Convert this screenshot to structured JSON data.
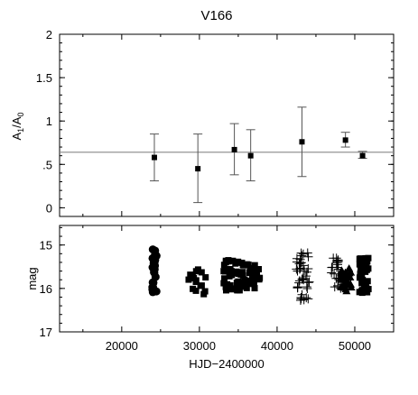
{
  "chart_data": [
    {
      "type": "scatter",
      "title": "V166",
      "xlabel": "",
      "ylabel": "A1/A0",
      "ylabel_main": "A",
      "ylabel_sub1": "1",
      "ylabel_div": "/A",
      "ylabel_sub0": "0",
      "xlim": [
        12000,
        55000
      ],
      "ylim": [
        -0.1,
        2.0
      ],
      "y_ticks": [
        0,
        0.5,
        1,
        1.5,
        2
      ],
      "y_tick_labels": [
        "0",
        ".5",
        "1",
        "1.5",
        "2"
      ],
      "reference_line": 0.64,
      "points": [
        {
          "x": 24200,
          "y": 0.58,
          "lo": 0.31,
          "hi": 0.85
        },
        {
          "x": 29800,
          "y": 0.45,
          "lo": 0.06,
          "hi": 0.85
        },
        {
          "x": 34500,
          "y": 0.67,
          "lo": 0.38,
          "hi": 0.97
        },
        {
          "x": 36600,
          "y": 0.6,
          "lo": 0.31,
          "hi": 0.9
        },
        {
          "x": 43200,
          "y": 0.76,
          "lo": 0.36,
          "hi": 1.16
        },
        {
          "x": 48800,
          "y": 0.78,
          "lo": 0.7,
          "hi": 0.87
        },
        {
          "x": 51000,
          "y": 0.6,
          "lo": 0.57,
          "hi": 0.65
        }
      ]
    },
    {
      "type": "scatter",
      "xlabel": "HJD−2400000",
      "ylabel": "mag",
      "xlim": [
        12000,
        55000
      ],
      "ylim": [
        17,
        14.55
      ],
      "inverted_y": true,
      "x_ticks": [
        20000,
        30000,
        40000,
        50000
      ],
      "x_tick_labels": [
        "20000",
        "30000",
        "40000",
        "50000"
      ],
      "y_ticks": [
        15,
        16,
        17
      ],
      "y_tick_labels": [
        "15",
        "16",
        "17"
      ],
      "groups": [
        {
          "marker": "circle",
          "x_center": 24200,
          "x_spread": 300,
          "mag_min": 15.05,
          "mag_max": 16.1,
          "count": 26
        },
        {
          "marker": "square",
          "x_center": 29700,
          "x_spread": 1200,
          "mag_min": 15.55,
          "mag_max": 16.15,
          "count": 16
        },
        {
          "marker": "square",
          "x_center": 35000,
          "x_spread": 1900,
          "mag_min": 15.35,
          "mag_max": 16.05,
          "count": 60
        },
        {
          "marker": "square",
          "x_center": 37300,
          "x_spread": 500,
          "mag_min": 15.45,
          "mag_max": 16.05,
          "count": 14
        },
        {
          "marker": "plus",
          "x_center": 43300,
          "x_spread": 900,
          "mag_min": 15.15,
          "mag_max": 16.3,
          "count": 40
        },
        {
          "marker": "plus",
          "x_center": 47700,
          "x_spread": 700,
          "mag_min": 15.3,
          "mag_max": 16.0,
          "count": 22
        },
        {
          "marker": "triangle",
          "x_center": 48900,
          "x_spread": 700,
          "mag_min": 15.5,
          "mag_max": 16.1,
          "count": 40
        },
        {
          "marker": "square",
          "x_center": 51200,
          "x_spread": 600,
          "mag_min": 15.3,
          "mag_max": 16.1,
          "count": 40
        }
      ]
    }
  ]
}
